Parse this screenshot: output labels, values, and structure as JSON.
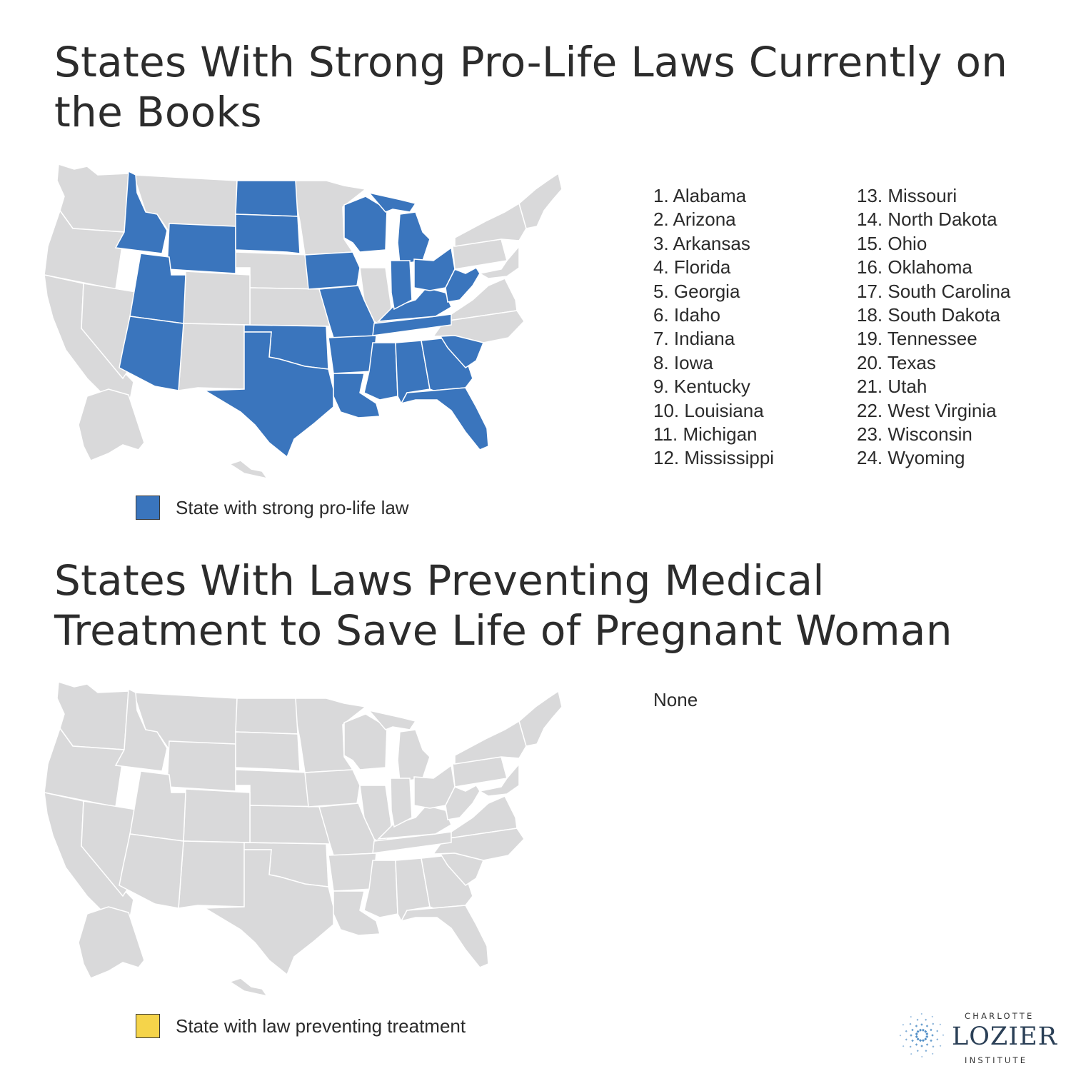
{
  "section1": {
    "title": "States With Strong Pro-Life Laws Currently on the Books",
    "legend_label": "State with strong pro-life law",
    "list_col1": [
      "1. Alabama",
      "2. Arizona",
      "3. Arkansas",
      "4. Florida",
      "5. Georgia",
      "6. Idaho",
      "7. Indiana",
      "8. Iowa",
      "9. Kentucky",
      "10. Louisiana",
      "11. Michigan",
      "12. Mississippi"
    ],
    "list_col2": [
      "13. Missouri",
      "14. North Dakota",
      "15. Ohio",
      "16. Oklahoma",
      "17. South Carolina",
      "18. South Dakota",
      "19. Tennessee",
      "20. Texas",
      "21. Utah",
      "22. West Virginia",
      "23. Wisconsin",
      "24. Wyoming"
    ],
    "highlight_color": "#3a75bd"
  },
  "section2": {
    "title": "States With Laws Preventing Medical Treatment to Save Life of Pregnant Woman",
    "legend_label": "State with law preventing treatment",
    "none_text": "None",
    "highlight_color": "#f5d44a"
  },
  "map_colors": {
    "default": "#d9d9da",
    "border": "#ffffff"
  },
  "logo": {
    "line1": "CHARLOTTE",
    "line2": "LOZIER",
    "line3": "INSTITUTE",
    "icon": "snowflake-dots-icon",
    "color": "#3a7fbf"
  }
}
